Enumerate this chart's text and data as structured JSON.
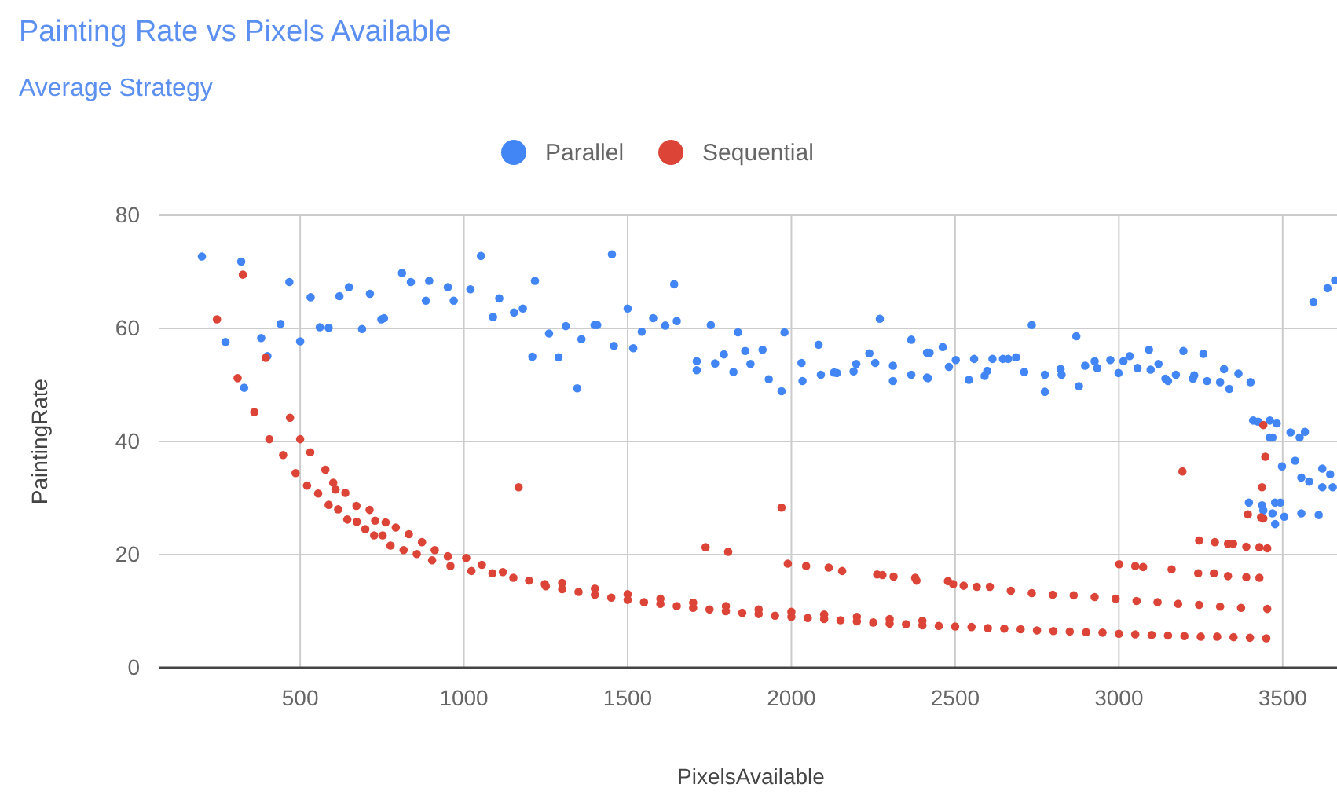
{
  "chart_data": {
    "type": "scatter",
    "title": "Painting Rate vs Pixels Available",
    "subtitle": "Average Strategy",
    "xlabel": "PixelsAvailable",
    "ylabel": "PaintingRate",
    "xlim": [
      68,
      3666
    ],
    "xticks": [
      500,
      1000,
      1500,
      2000,
      2500,
      3000,
      3500
    ],
    "ylim": [
      0,
      80
    ],
    "yticks": [
      0,
      20,
      40,
      60,
      80
    ],
    "grid": true,
    "legend": "top",
    "marker": "circle",
    "series": [
      {
        "name": "Parallel",
        "color": "#4285f4",
        "x": [
          200,
          320,
          272,
          381,
          400,
          440,
          467,
          329,
          500,
          532,
          560,
          587,
          620,
          649,
          689,
          713,
          748,
          756,
          811,
          838,
          884,
          894,
          951,
          969,
          1020,
          1052,
          1089,
          1108,
          1153,
          1180,
          1209,
          1217,
          1260,
          1289,
          1311,
          1346,
          1359,
          1399,
          1407,
          1452,
          1458,
          1500,
          1517,
          1543,
          1578,
          1615,
          1642,
          1650,
          1711,
          1711,
          1754,
          1767,
          1794,
          1823,
          1837,
          1859,
          1875,
          1912,
          1931,
          1970,
          1979,
          2031,
          2034,
          2083,
          2090,
          2130,
          2139,
          2190,
          2198,
          2238,
          2256,
          2270,
          2310,
          2310,
          2366,
          2366,
          2414,
          2414,
          2422,
          2417,
          2462,
          2481,
          2502,
          2542,
          2558,
          2590,
          2598,
          2614,
          2646,
          2662,
          2686,
          2711,
          2734,
          2774,
          2774,
          2822,
          2825,
          2870,
          2878,
          2897,
          2926,
          2934,
          2974,
          2999,
          3014,
          3033,
          3057,
          3092,
          3097,
          3121,
          3142,
          3150,
          3174,
          3197,
          3226,
          3230,
          3258,
          3269,
          3309,
          3321,
          3337,
          3365,
          3402,
          3410,
          3425,
          3461,
          3461,
          3482,
          3469,
          3524,
          3552,
          3568,
          3498,
          3538,
          3557,
          3581,
          3621,
          3645,
          3653,
          3621,
          3397,
          3437,
          3441,
          3477,
          3493,
          3469,
          3477,
          3505,
          3557,
          3610,
          3594,
          3637,
          3660
        ],
        "values": [
          72.7,
          71.8,
          57.6,
          58.3,
          55.1,
          60.8,
          68.2,
          49.5,
          57.7,
          65.5,
          60.2,
          60.1,
          65.7,
          67.3,
          59.9,
          66.1,
          61.6,
          61.8,
          69.8,
          68.2,
          64.9,
          68.4,
          67.3,
          64.9,
          66.9,
          72.8,
          62.0,
          65.3,
          62.8,
          63.5,
          55.0,
          68.4,
          59.1,
          54.9,
          60.4,
          49.4,
          58.1,
          60.6,
          60.6,
          73.1,
          56.9,
          63.5,
          56.5,
          59.4,
          61.8,
          60.5,
          67.8,
          61.3,
          54.2,
          52.6,
          60.6,
          53.8,
          55.4,
          52.3,
          59.3,
          56.0,
          53.7,
          56.2,
          51.0,
          48.9,
          59.3,
          53.9,
          50.7,
          57.1,
          51.8,
          52.2,
          52.1,
          52.4,
          53.7,
          55.6,
          53.9,
          61.7,
          53.4,
          50.7,
          58.0,
          51.8,
          55.7,
          51.3,
          55.7,
          51.2,
          56.7,
          53.2,
          54.4,
          50.9,
          54.6,
          51.6,
          52.5,
          54.6,
          54.6,
          54.6,
          54.9,
          52.3,
          60.6,
          51.8,
          48.8,
          52.8,
          51.8,
          58.6,
          49.8,
          53.4,
          54.2,
          53.0,
          54.4,
          52.1,
          54.2,
          55.1,
          53.0,
          56.2,
          52.7,
          53.7,
          51.1,
          50.7,
          51.8,
          56.0,
          51.1,
          51.7,
          55.5,
          50.7,
          50.5,
          52.8,
          49.3,
          52.0,
          50.5,
          43.7,
          43.5,
          43.7,
          40.7,
          43.2,
          40.7,
          41.6,
          40.7,
          41.7,
          35.6,
          36.6,
          33.6,
          32.9,
          35.2,
          34.2,
          31.9,
          31.9,
          29.2,
          28.7,
          27.8,
          29.2,
          29.2,
          27.3,
          25.4,
          26.7,
          27.3,
          27.0,
          64.7,
          67.1,
          68.5
        ]
      },
      {
        "name": "Sequential",
        "color": "#db4437",
        "x": [
          246,
          325,
          395,
          309,
          360,
          406,
          469,
          448,
          500,
          531,
          486,
          521,
          577,
          555,
          601,
          608,
          638,
          587,
          616,
          672,
          644,
          712,
          673,
          699,
          729,
          726,
          761,
          752,
          792,
          776,
          832,
          816,
          872,
          856,
          911,
          903,
          951,
          959,
          1007,
          1023,
          1055,
          1087,
          1119,
          1167,
          1151,
          1199,
          1247,
          1250,
          1300,
          1350,
          1400,
          1450,
          1500,
          1550,
          1600,
          1650,
          1700,
          1750,
          1800,
          1850,
          1900,
          1950,
          2000,
          2050,
          2100,
          2150,
          2200,
          2250,
          2300,
          2350,
          2400,
          2450,
          2500,
          2550,
          2600,
          2650,
          2700,
          2750,
          2800,
          2850,
          2900,
          2950,
          3000,
          3050,
          3100,
          3150,
          3200,
          3250,
          3300,
          3350,
          3400,
          3450,
          1300,
          1400,
          1500,
          1600,
          1700,
          1800,
          1900,
          2000,
          2100,
          2200,
          2300,
          2400,
          1738,
          1807,
          1970,
          1989,
          2045,
          2114,
          2155,
          2262,
          2278,
          2312,
          2378,
          2382,
          2478,
          2494,
          2526,
          2566,
          2606,
          2670,
          2734,
          2798,
          2862,
          2926,
          2990,
          3054,
          3118,
          3181,
          3245,
          3309,
          3373,
          3453,
          3001,
          3050,
          3074,
          3161,
          3242,
          3290,
          3333,
          3389,
          3429,
          3245,
          3293,
          3333,
          3349,
          3389,
          3429,
          3453,
          3194,
          3394,
          3437,
          3441,
          3447,
          3441,
          3434
        ],
        "values": [
          61.6,
          69.5,
          54.8,
          51.2,
          45.2,
          40.4,
          44.2,
          37.6,
          40.4,
          38.1,
          34.4,
          32.2,
          35.0,
          30.8,
          32.7,
          31.5,
          30.9,
          28.8,
          28.0,
          28.6,
          26.2,
          27.9,
          25.8,
          24.5,
          26.0,
          23.4,
          25.7,
          23.4,
          24.8,
          21.6,
          23.6,
          20.8,
          22.2,
          20.1,
          20.8,
          19.0,
          19.7,
          18.0,
          19.4,
          17.1,
          18.2,
          16.7,
          16.9,
          31.9,
          15.9,
          15.4,
          14.8,
          14.4,
          13.9,
          13.4,
          12.9,
          12.4,
          12.0,
          11.6,
          11.3,
          10.9,
          10.6,
          10.3,
          10.0,
          9.7,
          9.5,
          9.2,
          9.0,
          8.8,
          8.6,
          8.4,
          8.2,
          8.0,
          7.8,
          7.7,
          7.5,
          7.4,
          7.3,
          7.2,
          7.0,
          6.9,
          6.8,
          6.6,
          6.5,
          6.4,
          6.3,
          6.2,
          6.0,
          5.9,
          5.8,
          5.7,
          5.6,
          5.5,
          5.5,
          5.4,
          5.3,
          5.2,
          15.0,
          14.0,
          13.0,
          12.2,
          11.5,
          10.9,
          10.3,
          9.9,
          9.4,
          9.0,
          8.6,
          8.3,
          21.3,
          20.5,
          28.3,
          18.4,
          18.0,
          17.7,
          17.1,
          16.5,
          16.4,
          16.1,
          15.9,
          15.4,
          15.3,
          14.8,
          14.5,
          14.3,
          14.3,
          13.6,
          13.2,
          12.9,
          12.8,
          12.5,
          12.2,
          11.8,
          11.6,
          11.3,
          11.1,
          10.8,
          10.6,
          10.4,
          18.3,
          18.0,
          17.8,
          17.4,
          16.7,
          16.7,
          16.2,
          16.0,
          15.9,
          22.5,
          22.2,
          21.9,
          21.9,
          21.4,
          21.3,
          21.1,
          34.7,
          27.1,
          31.9,
          26.4,
          37.3,
          42.9,
          26.6
        ]
      }
    ]
  }
}
